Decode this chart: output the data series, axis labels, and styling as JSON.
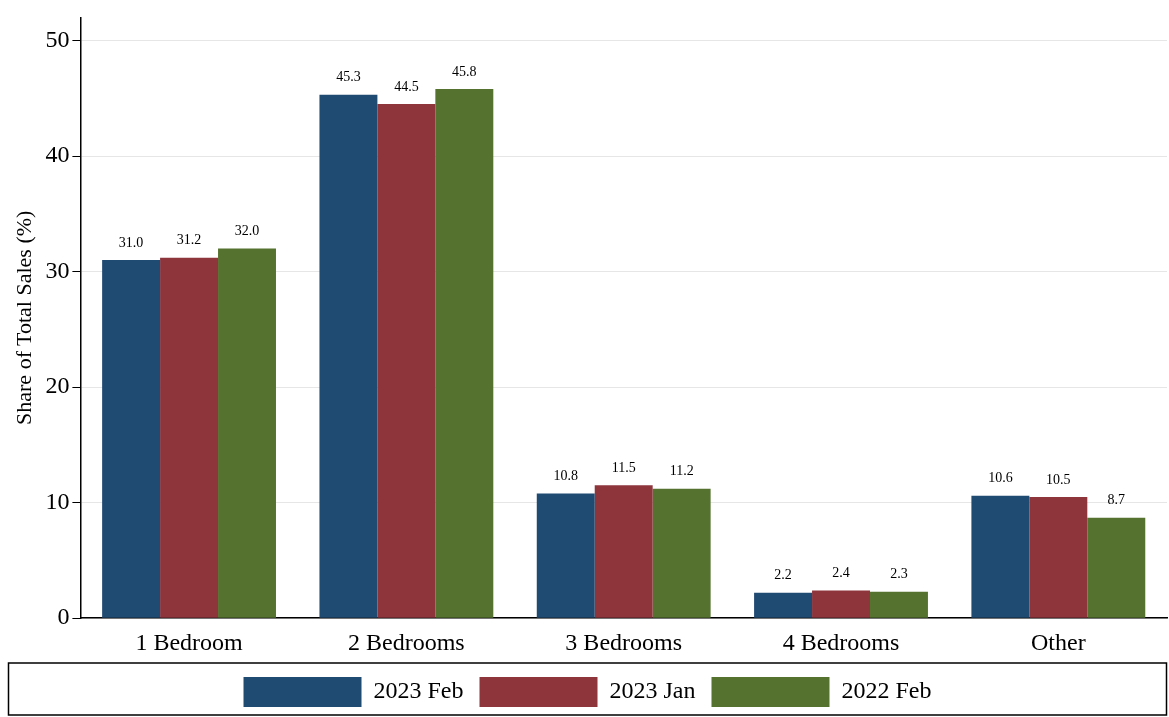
{
  "chart_data": {
    "type": "bar",
    "ylabel": "Share of Total Sales (%)",
    "categories": [
      "1 Bedroom",
      "2 Bedrooms",
      "3 Bedrooms",
      "4 Bedrooms",
      "Other"
    ],
    "series": [
      {
        "name": "2023 Feb",
        "color": "#1f4a72",
        "values": [
          31.0,
          45.3,
          10.8,
          2.2,
          10.6
        ],
        "value_labels": [
          "31.0",
          "45.3",
          "10.8",
          "2.2",
          "10.6"
        ]
      },
      {
        "name": "2023 Jan",
        "color": "#8e353c",
        "values": [
          31.2,
          44.5,
          11.5,
          2.4,
          10.5
        ],
        "value_labels": [
          "31.2",
          "44.5",
          "11.5",
          "2.4",
          "10.5"
        ]
      },
      {
        "name": "2022 Feb",
        "color": "#55722e",
        "values": [
          32.0,
          45.8,
          11.2,
          2.3,
          8.7
        ],
        "value_labels": [
          "32.0",
          "45.8",
          "11.2",
          "2.3",
          "8.7"
        ]
      }
    ],
    "ylim": [
      0,
      52
    ],
    "yticks": [
      0,
      10,
      20,
      30,
      40,
      50
    ],
    "grid": "y",
    "legend": "bottom"
  }
}
